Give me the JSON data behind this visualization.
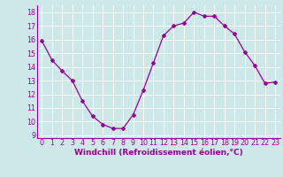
{
  "x": [
    0,
    1,
    2,
    3,
    4,
    5,
    6,
    7,
    8,
    9,
    10,
    11,
    12,
    13,
    14,
    15,
    16,
    17,
    18,
    19,
    20,
    21,
    22,
    23
  ],
  "y": [
    15.9,
    14.5,
    13.7,
    13.0,
    11.5,
    10.4,
    9.8,
    9.5,
    9.5,
    10.5,
    12.3,
    14.3,
    16.3,
    17.0,
    17.2,
    18.0,
    17.7,
    17.7,
    17.0,
    16.4,
    15.1,
    14.1,
    12.8,
    12.9
  ],
  "line_color": "#990099",
  "marker": "D",
  "marker_size": 2,
  "bg_color": "#cce8e8",
  "grid_color": "#b0d0d0",
  "xlabel": "Windchill (Refroidissement éolien,°C)",
  "ylim": [
    8.8,
    18.5
  ],
  "yticks": [
    9,
    10,
    11,
    12,
    13,
    14,
    15,
    16,
    17,
    18
  ],
  "xlim": [
    -0.5,
    23.5
  ],
  "xticks": [
    0,
    1,
    2,
    3,
    4,
    5,
    6,
    7,
    8,
    9,
    10,
    11,
    12,
    13,
    14,
    15,
    16,
    17,
    18,
    19,
    20,
    21,
    22,
    23
  ],
  "tick_label_fontsize": 5.8,
  "xlabel_fontsize": 6.5,
  "axis_label_color": "#990099",
  "linewidth": 0.9
}
